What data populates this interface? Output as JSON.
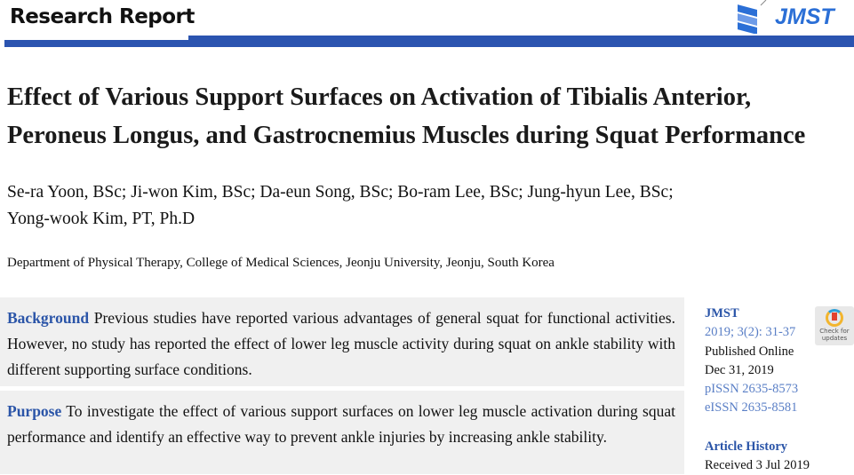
{
  "header": {
    "section": "Research Report",
    "journal_logo": "JMST"
  },
  "title_lines": [
    "Effect of Various Support Surfaces on Activation of Tibialis Anterior,",
    "Peroneus Longus, and Gastrocnemius Muscles during Squat Performance"
  ],
  "authors": [
    "Se-ra Yoon, BSc; Ji-won Kim, BSc; Da-eun Song, BSc; Bo-ram Lee, BSc; Jung-hyun Lee, BSc;",
    "Yong-wook Kim, PT, Ph.D"
  ],
  "affiliation": "Department of Physical Therapy, College of Medical Sciences, Jeonju University, Jeonju, South Korea",
  "abstract": {
    "background_label": "Background",
    "background_text": " Previous studies have reported various advantages of general squat for functional activities. However, no study has reported the effect of lower leg muscle activity during squat on ankle stability with different supporting surface conditions.",
    "purpose_label": "Purpose",
    "purpose_text": " To investigate the effect of various support surfaces on lower leg muscle activation during squat performance and identify an effective way to prevent ankle injuries by increasing ankle stability."
  },
  "sidebar": {
    "journal": "JMST",
    "citation": "2019; 3(2): 31-37",
    "published": "Published Online",
    "date": "Dec 31, 2019",
    "pissn": "pISSN 2635-8573",
    "eissn": "eISSN 2635-8581",
    "history_label": "Article History",
    "received": "Received 3 Jul 2019"
  },
  "check_updates": "Check for updates"
}
